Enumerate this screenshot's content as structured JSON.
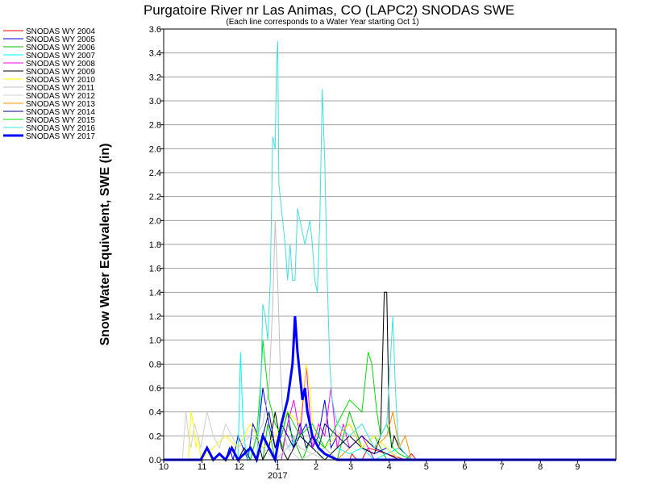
{
  "chart_data": {
    "type": "line",
    "title": "Purgatoire River nr Las Animas, CO (LAPC2) SNODAS SWE",
    "subtitle": "(Each line corresponds to a Water Year starting Oct 1)",
    "ylabel": "Snow Water Equivalent, SWE (in)",
    "xlabel": "",
    "x_tick_labels": [
      "10",
      "11",
      "12",
      "1",
      "2",
      "3",
      "4",
      "5",
      "6",
      "7",
      "8",
      "9"
    ],
    "x_year_label": "2017",
    "ylim": [
      0,
      3.6
    ],
    "y_ticks": [
      "0.0",
      "0.2",
      "0.4",
      "0.6",
      "0.8",
      "1.0",
      "1.2",
      "1.4",
      "1.6",
      "1.8",
      "2.0",
      "2.2",
      "2.4",
      "2.6",
      "2.8",
      "3.0",
      "3.2",
      "3.4",
      "3.6"
    ],
    "grid": true,
    "legend_placement": "left",
    "series": [
      {
        "name": "SNODAS WY 2004",
        "color": "#ff0000",
        "x": [
          0,
          150,
          152,
          154,
          157,
          160,
          165,
          195,
          200,
          204,
          210,
          365
        ],
        "y": [
          0,
          0,
          0.05,
          0.02,
          0,
          0,
          0.1,
          0,
          0.05,
          0,
          0,
          0
        ]
      },
      {
        "name": "SNODAS WY 2005",
        "color": "#0000ff",
        "x": [
          0,
          50,
          53,
          56,
          60,
          64,
          68,
          72,
          76,
          80,
          85,
          90,
          95,
          100,
          105,
          110,
          115,
          120,
          125,
          130,
          135,
          140,
          150,
          160,
          170,
          180,
          190,
          365
        ],
        "y": [
          0,
          0,
          0.1,
          0,
          0.2,
          0.1,
          0,
          0.3,
          0.2,
          0.6,
          0.3,
          0.1,
          0.2,
          0.4,
          0.1,
          0.2,
          0.3,
          0.1,
          0.2,
          0.5,
          0.1,
          0.2,
          0.3,
          0.1,
          0.05,
          0.1,
          0,
          0
        ]
      },
      {
        "name": "SNODAS WY 2006",
        "color": "#00c000",
        "x": [
          0,
          80,
          84,
          86,
          88,
          90,
          93,
          96,
          100,
          104,
          108,
          112,
          120,
          130,
          140,
          150,
          160,
          170,
          180,
          365
        ],
        "y": [
          0,
          0,
          0.3,
          0.2,
          0.1,
          0,
          0.2,
          0.1,
          0.3,
          0.2,
          0.1,
          0,
          0.2,
          0.1,
          0,
          0.4,
          0.1,
          0.2,
          0,
          0
        ]
      },
      {
        "name": "SNODAS WY 2007",
        "color": "#00ffff",
        "x": [
          0,
          60,
          62,
          64,
          66,
          68,
          70,
          75,
          80,
          85,
          90,
          100,
          110,
          120,
          130,
          140,
          150,
          160,
          170,
          180,
          190,
          200,
          210,
          365
        ],
        "y": [
          0,
          0,
          0.9,
          0.3,
          0.1,
          0,
          0.1,
          0,
          0.2,
          0.1,
          0,
          0.1,
          0.2,
          0.1,
          0,
          0.1,
          0.05,
          0.1,
          0,
          0.05,
          0.1,
          0,
          0,
          0
        ]
      },
      {
        "name": "SNODAS WY 2008",
        "color": "#ff00ff",
        "x": [
          0,
          95,
          100,
          105,
          110,
          115,
          120,
          125,
          130,
          135,
          140,
          145,
          150,
          160,
          170,
          365
        ],
        "y": [
          0,
          0,
          0.3,
          0.5,
          0.2,
          0.8,
          0.1,
          0.3,
          0.2,
          0.6,
          0.1,
          0.3,
          0.1,
          0.2,
          0,
          0
        ]
      },
      {
        "name": "SNODAS WY 2009",
        "color": "#000000",
        "x": [
          0,
          60,
          65,
          70,
          75,
          80,
          85,
          90,
          95,
          100,
          110,
          120,
          130,
          140,
          150,
          160,
          170,
          175,
          178,
          180,
          182,
          184,
          186,
          190,
          195,
          200,
          365
        ],
        "y": [
          0,
          0,
          0.1,
          0,
          0.2,
          0,
          0.1,
          0.4,
          0.1,
          0,
          0.2,
          0.1,
          0,
          0.1,
          0.2,
          0.1,
          0.05,
          0.2,
          1.4,
          1.4,
          0.3,
          0.1,
          0.2,
          0.1,
          0.05,
          0,
          0
        ]
      },
      {
        "name": "SNODAS WY 2010",
        "color": "#ffff00",
        "x": [
          0,
          20,
          22,
          24,
          26,
          28,
          30,
          40,
          50,
          60,
          70,
          80,
          90,
          100,
          110,
          115,
          118,
          120,
          125,
          130,
          140,
          150,
          160,
          170,
          180,
          190,
          365
        ],
        "y": [
          0,
          0,
          0.4,
          0.3,
          0.1,
          0.2,
          0,
          0.1,
          0.2,
          0.1,
          0.3,
          0.1,
          0.2,
          0.4,
          0.3,
          0.8,
          0.6,
          0.3,
          0.2,
          0.1,
          0.2,
          0.3,
          0.1,
          0.2,
          0.1,
          0,
          0
        ]
      },
      {
        "name": "SNODAS WY 2011",
        "color": "#c0c0c0",
        "x": [
          0,
          70,
          75,
          80,
          85,
          88,
          90,
          92,
          94,
          96,
          98,
          100,
          105,
          110,
          120,
          130,
          140,
          365
        ],
        "y": [
          0,
          0,
          0.2,
          0.3,
          0.6,
          1.3,
          2.0,
          1.5,
          0.8,
          0.4,
          0.2,
          0.1,
          0.2,
          0.1,
          0.05,
          0.1,
          0,
          0
        ]
      },
      {
        "name": "SNODAS WY 2012",
        "color": "#d0d0d0",
        "x": [
          0,
          15,
          18,
          20,
          22,
          25,
          30,
          35,
          40,
          45,
          50,
          55,
          60,
          70,
          80,
          90,
          100,
          110,
          120,
          130,
          365
        ],
        "y": [
          0,
          0,
          0.4,
          0.2,
          0.1,
          0.3,
          0.1,
          0.4,
          0.2,
          0.1,
          0.3,
          0.2,
          0.1,
          0.2,
          0.1,
          0,
          0.1,
          0,
          0.05,
          0,
          0
        ]
      },
      {
        "name": "SNODAS WY 2013",
        "color": "#ff8c00",
        "x": [
          0,
          140,
          150,
          160,
          170,
          180,
          185,
          190,
          195,
          200,
          365
        ],
        "y": [
          0,
          0,
          0.1,
          0.2,
          0.1,
          0.2,
          0.4,
          0.1,
          0.2,
          0,
          0
        ]
      },
      {
        "name": "SNODAS WY 2014",
        "color": "#000080",
        "x": [
          0,
          75,
          80,
          85,
          90,
          95,
          100,
          105,
          110,
          115,
          120,
          125,
          130,
          140,
          150,
          160,
          170,
          180,
          190,
          365
        ],
        "y": [
          0,
          0,
          0.2,
          0.4,
          0.1,
          0.3,
          0.2,
          0.1,
          0.3,
          0.1,
          0.2,
          0.1,
          0.3,
          0.2,
          0.1,
          0.2,
          0.1,
          0.05,
          0,
          0
        ]
      },
      {
        "name": "SNODAS WY 2015",
        "color": "#00e000",
        "x": [
          0,
          70,
          75,
          78,
          80,
          82,
          85,
          90,
          95,
          100,
          110,
          120,
          130,
          140,
          150,
          160,
          165,
          168,
          170,
          172,
          175,
          180,
          185,
          190,
          200,
          365
        ],
        "y": [
          0,
          0,
          0.2,
          0.6,
          1.0,
          0.8,
          0.5,
          0.3,
          0.2,
          0.4,
          0.2,
          0.3,
          0.1,
          0.3,
          0.5,
          0.4,
          0.9,
          0.8,
          0.6,
          0.4,
          0.2,
          0.3,
          0.1,
          0.05,
          0,
          0
        ]
      },
      {
        "name": "SNODAS WY 2016",
        "color": "#40e0e0",
        "x": [
          0,
          75,
          78,
          80,
          82,
          84,
          86,
          88,
          90,
          91,
          92,
          93,
          94,
          95,
          96,
          98,
          100,
          102,
          104,
          106,
          108,
          110,
          112,
          114,
          116,
          118,
          120,
          122,
          124,
          126,
          128,
          130,
          132,
          134,
          136,
          138,
          140,
          150,
          160,
          170,
          180,
          185,
          187,
          189,
          191,
          195,
          200,
          365
        ],
        "y": [
          0,
          0,
          0.5,
          1.3,
          1.2,
          1.0,
          1.5,
          2.7,
          2.6,
          3.3,
          3.5,
          2.3,
          2.2,
          2.1,
          2.0,
          1.8,
          1.5,
          1.8,
          1.5,
          1.5,
          2.1,
          2.0,
          1.9,
          1.8,
          1.9,
          2.0,
          1.8,
          1.5,
          1.4,
          2.0,
          3.1,
          2.5,
          1.5,
          0.8,
          0.5,
          0.4,
          0.3,
          0.2,
          0.3,
          0.1,
          0.3,
          1.2,
          0.6,
          0.2,
          0.1,
          0.05,
          0,
          0
        ]
      },
      {
        "name": "SNODAS WY 2017",
        "color": "#0000ff",
        "bold": true,
        "x": [
          0,
          30,
          35,
          40,
          45,
          50,
          55,
          60,
          65,
          70,
          75,
          80,
          85,
          90,
          95,
          100,
          104,
          106,
          108,
          110,
          112,
          114,
          116,
          118,
          120,
          125,
          130,
          140,
          150,
          365
        ],
        "y": [
          0,
          0,
          0.1,
          0,
          0.05,
          0,
          0.1,
          0,
          0.05,
          0.1,
          0,
          0.2,
          0.1,
          0,
          0.3,
          0.5,
          0.8,
          1.2,
          0.9,
          0.7,
          0.5,
          0.6,
          0.4,
          0.3,
          0.2,
          0.1,
          0.05,
          0,
          0,
          0
        ]
      }
    ]
  }
}
